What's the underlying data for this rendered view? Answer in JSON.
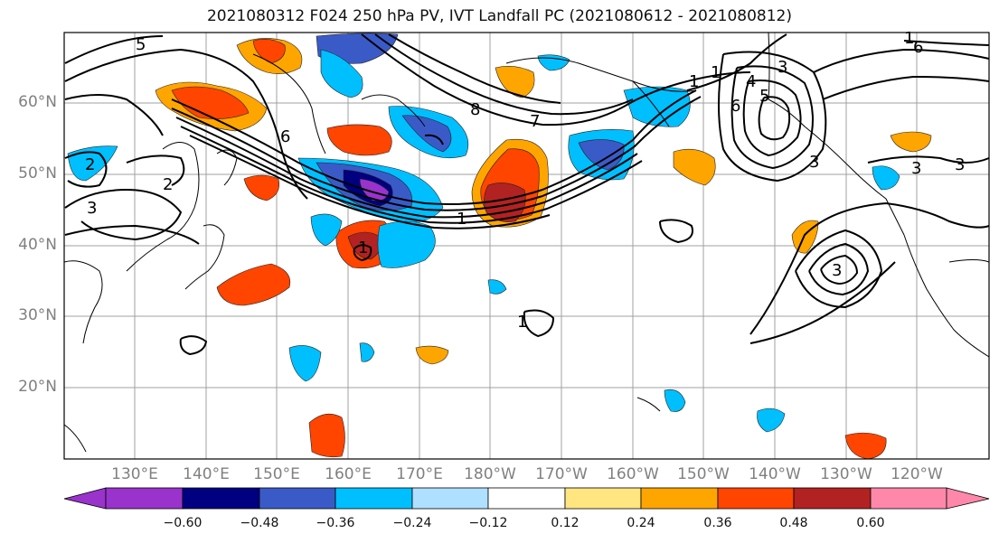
{
  "title": "2021080312 F024 250 hPa PV, IVT Landfall PC (2021080612 - 2021080812)",
  "lat_labels": [
    "60°N",
    "50°N",
    "40°N",
    "30°N",
    "20°N"
  ],
  "lon_labels": [
    "130°E",
    "140°E",
    "150°E",
    "160°E",
    "170°E",
    "180°W",
    "170°W",
    "160°W",
    "150°W",
    "140°W",
    "130°W",
    "120°W"
  ],
  "colorbar": {
    "colors": [
      "#9933cc",
      "#000080",
      "#3a5bc7",
      "#00bfff",
      "#b0e0ff",
      "#ffffff",
      "#ffe680",
      "#ffa500",
      "#ff4500",
      "#b22222",
      "#ff88aa"
    ],
    "tick_labels": [
      "−0.60",
      "−0.48",
      "−0.36",
      "−0.24",
      "−0.12",
      "0.12",
      "0.24",
      "0.36",
      "0.48",
      "0.60"
    ]
  },
  "contour_labels": [
    "5",
    "6",
    "7",
    "8",
    "1",
    "2",
    "3",
    "2",
    "3",
    "4",
    "5",
    "6",
    "3",
    "1",
    "1",
    "1",
    "6",
    "3",
    "3",
    "1",
    "1",
    "3"
  ]
}
